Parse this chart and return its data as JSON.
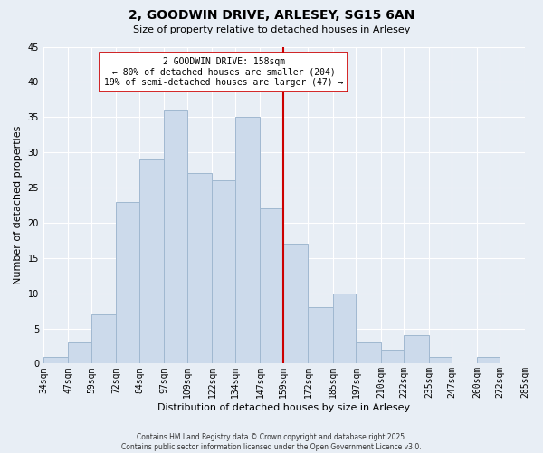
{
  "title": "2, GOODWIN DRIVE, ARLESEY, SG15 6AN",
  "subtitle": "Size of property relative to detached houses in Arlesey",
  "xlabel": "Distribution of detached houses by size in Arlesey",
  "ylabel": "Number of detached properties",
  "bin_labels": [
    "34sqm",
    "47sqm",
    "59sqm",
    "72sqm",
    "84sqm",
    "97sqm",
    "109sqm",
    "122sqm",
    "134sqm",
    "147sqm",
    "159sqm",
    "172sqm",
    "185sqm",
    "197sqm",
    "210sqm",
    "222sqm",
    "235sqm",
    "247sqm",
    "260sqm",
    "272sqm",
    "285sqm"
  ],
  "bar_values": [
    1,
    3,
    7,
    23,
    29,
    36,
    27,
    26,
    35,
    22,
    17,
    8,
    10,
    3,
    2,
    4,
    1,
    0,
    1,
    0
  ],
  "bar_color": "#ccdaeb",
  "bar_edge_color": "#a0b8d0",
  "vline_x_idx": 10,
  "vline_color": "#cc0000",
  "ylim": [
    0,
    45
  ],
  "yticks": [
    0,
    5,
    10,
    15,
    20,
    25,
    30,
    35,
    40,
    45
  ],
  "annotation_title": "2 GOODWIN DRIVE: 158sqm",
  "annotation_line1": "← 80% of detached houses are smaller (204)",
  "annotation_line2": "19% of semi-detached houses are larger (47) →",
  "footer_line1": "Contains HM Land Registry data © Crown copyright and database right 2025.",
  "footer_line2": "Contains public sector information licensed under the Open Government Licence v3.0.",
  "bin_edges": [
    34,
    47,
    59,
    72,
    84,
    97,
    109,
    122,
    134,
    147,
    159,
    172,
    185,
    197,
    210,
    222,
    235,
    247,
    260,
    272,
    285
  ],
  "bg_color": "#e8eef5",
  "grid_color": "#ffffff",
  "title_fontsize": 10,
  "subtitle_fontsize": 8,
  "ylabel_fontsize": 8,
  "xlabel_fontsize": 8,
  "tick_fontsize": 7,
  "ann_fontsize": 7,
  "footer_fontsize": 5.5
}
